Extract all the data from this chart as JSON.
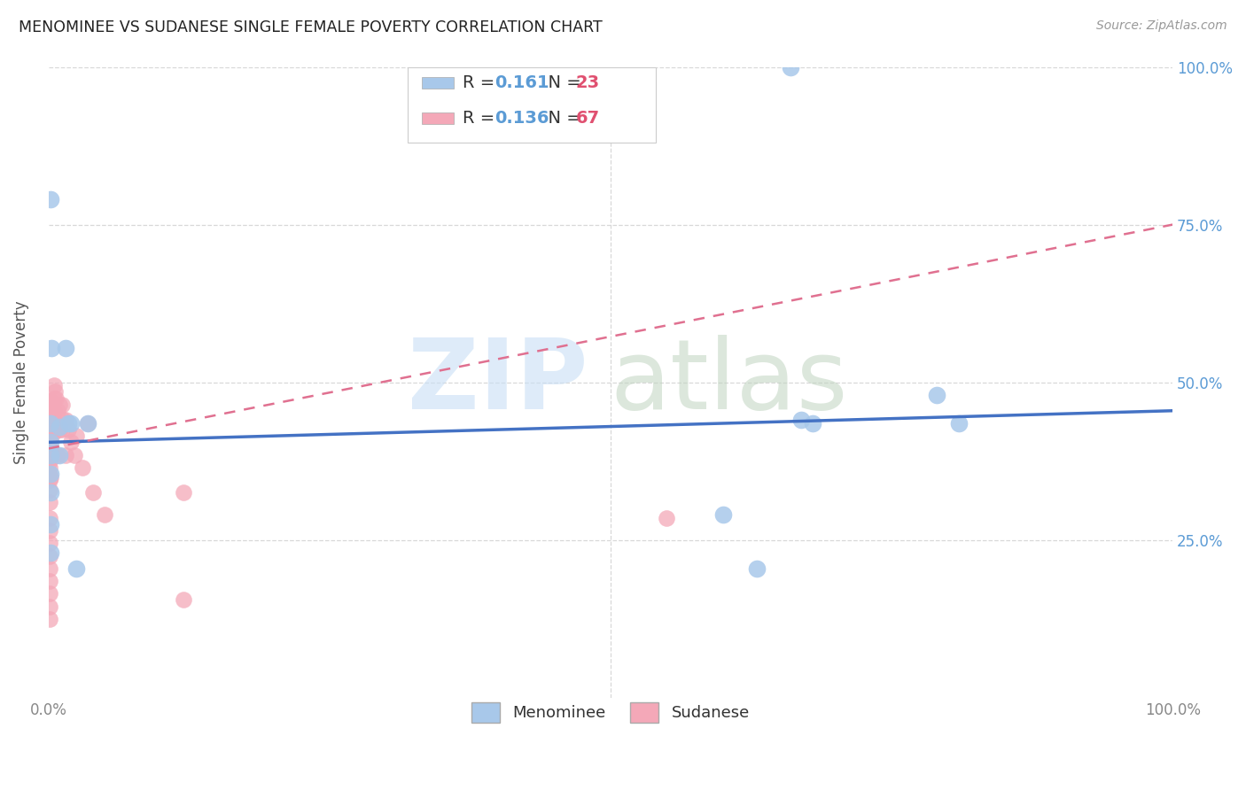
{
  "title": "MENOMINEE VS SUDANESE SINGLE FEMALE POVERTY CORRELATION CHART",
  "source": "Source: ZipAtlas.com",
  "ylabel": "Single Female Poverty",
  "xlim": [
    0,
    1
  ],
  "ylim": [
    0,
    1
  ],
  "menominee_R": 0.161,
  "menominee_N": 23,
  "sudanese_R": 0.136,
  "sudanese_N": 67,
  "menominee_color": "#a8c8ea",
  "sudanese_color": "#f4a8b8",
  "menominee_line_color": "#4472c4",
  "sudanese_line_color": "#e07090",
  "menominee_line_x0": 0.0,
  "menominee_line_y0": 0.405,
  "menominee_line_x1": 1.0,
  "menominee_line_y1": 0.455,
  "sudanese_line_x0": 0.0,
  "sudanese_line_y0": 0.395,
  "sudanese_line_x1": 1.0,
  "sudanese_line_y1": 0.75,
  "menominee_pts": [
    [
      0.002,
      0.79
    ],
    [
      0.003,
      0.555
    ],
    [
      0.015,
      0.555
    ],
    [
      0.002,
      0.435
    ],
    [
      0.002,
      0.405
    ],
    [
      0.002,
      0.385
    ],
    [
      0.002,
      0.355
    ],
    [
      0.002,
      0.325
    ],
    [
      0.002,
      0.275
    ],
    [
      0.002,
      0.23
    ],
    [
      0.01,
      0.43
    ],
    [
      0.01,
      0.385
    ],
    [
      0.018,
      0.435
    ],
    [
      0.02,
      0.435
    ],
    [
      0.025,
      0.205
    ],
    [
      0.035,
      0.435
    ],
    [
      0.6,
      0.29
    ],
    [
      0.63,
      0.205
    ],
    [
      0.67,
      0.44
    ],
    [
      0.68,
      0.435
    ],
    [
      0.79,
      0.48
    ],
    [
      0.81,
      0.435
    ],
    [
      0.66,
      1.0
    ]
  ],
  "sudanese_pts": [
    [
      0.001,
      0.47
    ],
    [
      0.001,
      0.455
    ],
    [
      0.001,
      0.445
    ],
    [
      0.001,
      0.435
    ],
    [
      0.001,
      0.425
    ],
    [
      0.001,
      0.415
    ],
    [
      0.001,
      0.405
    ],
    [
      0.001,
      0.395
    ],
    [
      0.001,
      0.385
    ],
    [
      0.001,
      0.375
    ],
    [
      0.001,
      0.365
    ],
    [
      0.001,
      0.355
    ],
    [
      0.001,
      0.345
    ],
    [
      0.001,
      0.33
    ],
    [
      0.001,
      0.31
    ],
    [
      0.001,
      0.285
    ],
    [
      0.001,
      0.265
    ],
    [
      0.001,
      0.245
    ],
    [
      0.001,
      0.225
    ],
    [
      0.001,
      0.205
    ],
    [
      0.001,
      0.185
    ],
    [
      0.001,
      0.165
    ],
    [
      0.001,
      0.145
    ],
    [
      0.001,
      0.125
    ],
    [
      0.002,
      0.47
    ],
    [
      0.002,
      0.455
    ],
    [
      0.002,
      0.44
    ],
    [
      0.002,
      0.43
    ],
    [
      0.002,
      0.415
    ],
    [
      0.002,
      0.395
    ],
    [
      0.002,
      0.38
    ],
    [
      0.002,
      0.35
    ],
    [
      0.003,
      0.465
    ],
    [
      0.003,
      0.445
    ],
    [
      0.003,
      0.425
    ],
    [
      0.003,
      0.39
    ],
    [
      0.004,
      0.455
    ],
    [
      0.004,
      0.44
    ],
    [
      0.004,
      0.42
    ],
    [
      0.005,
      0.495
    ],
    [
      0.005,
      0.475
    ],
    [
      0.005,
      0.455
    ],
    [
      0.005,
      0.435
    ],
    [
      0.006,
      0.485
    ],
    [
      0.006,
      0.435
    ],
    [
      0.007,
      0.475
    ],
    [
      0.007,
      0.435
    ],
    [
      0.008,
      0.455
    ],
    [
      0.008,
      0.385
    ],
    [
      0.01,
      0.465
    ],
    [
      0.01,
      0.425
    ],
    [
      0.012,
      0.465
    ],
    [
      0.012,
      0.425
    ],
    [
      0.013,
      0.44
    ],
    [
      0.015,
      0.44
    ],
    [
      0.015,
      0.385
    ],
    [
      0.018,
      0.425
    ],
    [
      0.02,
      0.405
    ],
    [
      0.023,
      0.385
    ],
    [
      0.025,
      0.415
    ],
    [
      0.03,
      0.365
    ],
    [
      0.035,
      0.435
    ],
    [
      0.04,
      0.325
    ],
    [
      0.05,
      0.29
    ],
    [
      0.55,
      0.285
    ],
    [
      0.12,
      0.325
    ],
    [
      0.12,
      0.155
    ]
  ],
  "background_color": "#ffffff",
  "grid_color": "#d8d8d8"
}
